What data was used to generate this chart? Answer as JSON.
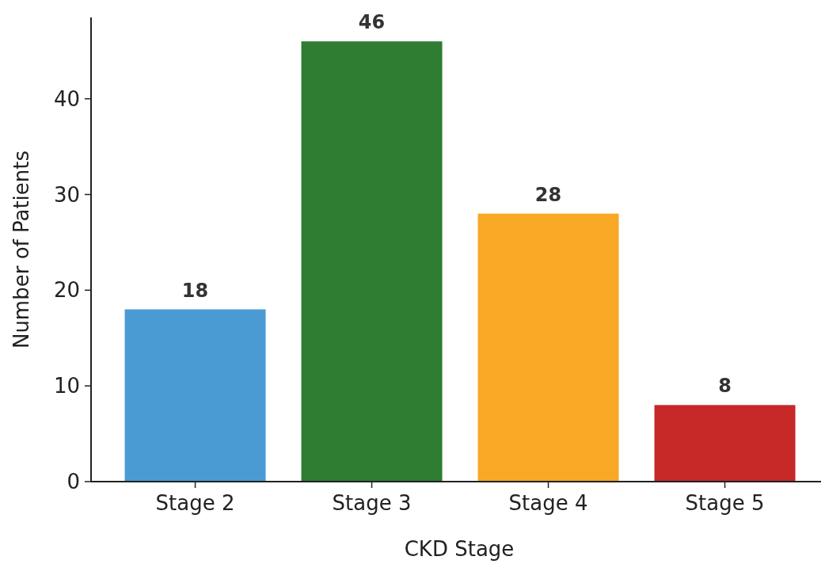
{
  "chart_data": {
    "type": "bar",
    "xlabel": "CKD Stage",
    "ylabel": "Number of Patients",
    "categories": [
      "Stage 2",
      "Stage 3",
      "Stage 4",
      "Stage 5"
    ],
    "values": [
      18,
      46,
      28,
      8
    ],
    "colors": [
      "#4a9bd4",
      "#2e7d32",
      "#f8a825",
      "#c62828"
    ],
    "ylim": [
      0,
      48.5
    ],
    "yticks": [
      0,
      10,
      20,
      30,
      40
    ],
    "grid": false,
    "data_labels": true
  }
}
